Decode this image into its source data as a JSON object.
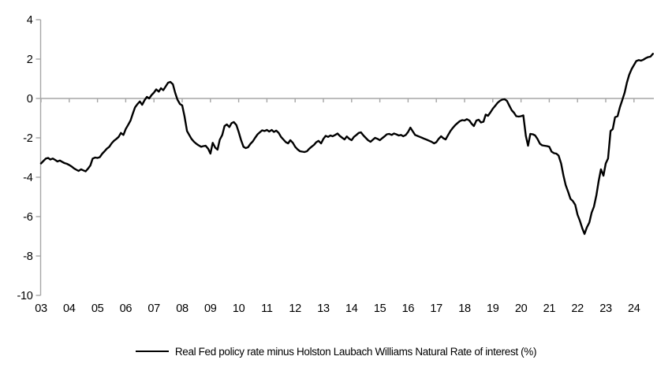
{
  "chart_data": {
    "type": "line",
    "title": "",
    "xlabel": "",
    "ylabel": "",
    "grid": false,
    "legend_position": "bottom",
    "axis_color": "#a6a6a6",
    "background_color": "#ffffff",
    "zero_line": true,
    "y_axis": {
      "ticks": [
        4,
        2,
        0,
        -2,
        -4,
        -6,
        -8,
        -10
      ],
      "tick_labels": [
        "4",
        "2",
        "0",
        "-2",
        "-4",
        "-6",
        "-8",
        "-10"
      ],
      "range": [
        -10,
        4
      ]
    },
    "x_axis": {
      "tick_years": [
        2003,
        2004,
        2005,
        2006,
        2007,
        2008,
        2009,
        2010,
        2011,
        2012,
        2013,
        2014,
        2015,
        2016,
        2017,
        2018,
        2019,
        2020,
        2021,
        2022,
        2023,
        2024
      ],
      "tick_labels": [
        "03",
        "04",
        "05",
        "06",
        "07",
        "08",
        "09",
        "10",
        "11",
        "12",
        "13",
        "14",
        "15",
        "16",
        "17",
        "18",
        "19",
        "20",
        "21",
        "22",
        "23",
        "24"
      ],
      "range": [
        2003.0,
        2024.72
      ]
    },
    "series": [
      {
        "name": "Real Fed policy rate minus Holston Laubach Williams Natural Rate of interest (%)",
        "color": "#000000",
        "points": [
          [
            2003.0,
            -3.3
          ],
          [
            2003.08,
            -3.18
          ],
          [
            2003.17,
            -3.05
          ],
          [
            2003.25,
            -3.02
          ],
          [
            2003.33,
            -3.1
          ],
          [
            2003.42,
            -3.05
          ],
          [
            2003.5,
            -3.12
          ],
          [
            2003.58,
            -3.2
          ],
          [
            2003.67,
            -3.15
          ],
          [
            2003.75,
            -3.22
          ],
          [
            2003.83,
            -3.28
          ],
          [
            2003.92,
            -3.32
          ],
          [
            2004.0,
            -3.38
          ],
          [
            2004.08,
            -3.45
          ],
          [
            2004.17,
            -3.55
          ],
          [
            2004.25,
            -3.62
          ],
          [
            2004.33,
            -3.68
          ],
          [
            2004.42,
            -3.6
          ],
          [
            2004.5,
            -3.65
          ],
          [
            2004.58,
            -3.7
          ],
          [
            2004.67,
            -3.55
          ],
          [
            2004.75,
            -3.4
          ],
          [
            2004.83,
            -3.05
          ],
          [
            2004.92,
            -3.0
          ],
          [
            2005.0,
            -3.02
          ],
          [
            2005.08,
            -2.98
          ],
          [
            2005.17,
            -2.8
          ],
          [
            2005.25,
            -2.68
          ],
          [
            2005.33,
            -2.55
          ],
          [
            2005.42,
            -2.45
          ],
          [
            2005.5,
            -2.28
          ],
          [
            2005.58,
            -2.15
          ],
          [
            2005.67,
            -2.05
          ],
          [
            2005.75,
            -1.95
          ],
          [
            2005.83,
            -1.75
          ],
          [
            2005.92,
            -1.85
          ],
          [
            2006.0,
            -1.55
          ],
          [
            2006.08,
            -1.35
          ],
          [
            2006.17,
            -1.12
          ],
          [
            2006.25,
            -0.78
          ],
          [
            2006.33,
            -0.45
          ],
          [
            2006.42,
            -0.28
          ],
          [
            2006.5,
            -0.15
          ],
          [
            2006.58,
            -0.32
          ],
          [
            2006.67,
            -0.08
          ],
          [
            2006.75,
            0.08
          ],
          [
            2006.83,
            0.0
          ],
          [
            2006.92,
            0.18
          ],
          [
            2007.0,
            0.3
          ],
          [
            2007.08,
            0.46
          ],
          [
            2007.17,
            0.35
          ],
          [
            2007.25,
            0.52
          ],
          [
            2007.33,
            0.42
          ],
          [
            2007.42,
            0.62
          ],
          [
            2007.5,
            0.8
          ],
          [
            2007.58,
            0.84
          ],
          [
            2007.67,
            0.72
          ],
          [
            2007.75,
            0.3
          ],
          [
            2007.83,
            -0.05
          ],
          [
            2007.92,
            -0.28
          ],
          [
            2008.0,
            -0.35
          ],
          [
            2008.08,
            -0.9
          ],
          [
            2008.17,
            -1.65
          ],
          [
            2008.25,
            -1.85
          ],
          [
            2008.33,
            -2.05
          ],
          [
            2008.42,
            -2.2
          ],
          [
            2008.5,
            -2.3
          ],
          [
            2008.58,
            -2.38
          ],
          [
            2008.67,
            -2.45
          ],
          [
            2008.75,
            -2.42
          ],
          [
            2008.83,
            -2.4
          ],
          [
            2008.92,
            -2.55
          ],
          [
            2009.0,
            -2.8
          ],
          [
            2009.08,
            -2.25
          ],
          [
            2009.17,
            -2.5
          ],
          [
            2009.25,
            -2.6
          ],
          [
            2009.33,
            -2.1
          ],
          [
            2009.42,
            -1.85
          ],
          [
            2009.5,
            -1.4
          ],
          [
            2009.58,
            -1.32
          ],
          [
            2009.67,
            -1.45
          ],
          [
            2009.75,
            -1.25
          ],
          [
            2009.83,
            -1.2
          ],
          [
            2009.92,
            -1.35
          ],
          [
            2010.0,
            -1.7
          ],
          [
            2010.08,
            -2.1
          ],
          [
            2010.17,
            -2.45
          ],
          [
            2010.25,
            -2.52
          ],
          [
            2010.33,
            -2.48
          ],
          [
            2010.42,
            -2.3
          ],
          [
            2010.5,
            -2.18
          ],
          [
            2010.58,
            -2.0
          ],
          [
            2010.67,
            -1.82
          ],
          [
            2010.75,
            -1.72
          ],
          [
            2010.83,
            -1.62
          ],
          [
            2010.92,
            -1.65
          ],
          [
            2011.0,
            -1.6
          ],
          [
            2011.08,
            -1.68
          ],
          [
            2011.17,
            -1.6
          ],
          [
            2011.25,
            -1.7
          ],
          [
            2011.33,
            -1.63
          ],
          [
            2011.42,
            -1.75
          ],
          [
            2011.5,
            -1.95
          ],
          [
            2011.58,
            -2.08
          ],
          [
            2011.67,
            -2.22
          ],
          [
            2011.75,
            -2.28
          ],
          [
            2011.83,
            -2.12
          ],
          [
            2011.92,
            -2.25
          ],
          [
            2012.0,
            -2.45
          ],
          [
            2012.08,
            -2.58
          ],
          [
            2012.17,
            -2.68
          ],
          [
            2012.25,
            -2.7
          ],
          [
            2012.33,
            -2.72
          ],
          [
            2012.42,
            -2.68
          ],
          [
            2012.5,
            -2.55
          ],
          [
            2012.58,
            -2.45
          ],
          [
            2012.67,
            -2.35
          ],
          [
            2012.75,
            -2.22
          ],
          [
            2012.83,
            -2.15
          ],
          [
            2012.92,
            -2.28
          ],
          [
            2013.0,
            -2.05
          ],
          [
            2013.08,
            -1.9
          ],
          [
            2013.17,
            -1.95
          ],
          [
            2013.25,
            -1.88
          ],
          [
            2013.33,
            -1.92
          ],
          [
            2013.42,
            -1.85
          ],
          [
            2013.5,
            -1.78
          ],
          [
            2013.58,
            -1.9
          ],
          [
            2013.67,
            -2.0
          ],
          [
            2013.75,
            -2.08
          ],
          [
            2013.83,
            -1.93
          ],
          [
            2013.92,
            -2.05
          ],
          [
            2014.0,
            -2.12
          ],
          [
            2014.08,
            -1.95
          ],
          [
            2014.17,
            -1.85
          ],
          [
            2014.25,
            -1.75
          ],
          [
            2014.33,
            -1.72
          ],
          [
            2014.42,
            -1.88
          ],
          [
            2014.5,
            -2.0
          ],
          [
            2014.58,
            -2.12
          ],
          [
            2014.67,
            -2.2
          ],
          [
            2014.75,
            -2.1
          ],
          [
            2014.83,
            -2.0
          ],
          [
            2014.92,
            -2.05
          ],
          [
            2015.0,
            -2.12
          ],
          [
            2015.08,
            -2.02
          ],
          [
            2015.17,
            -1.92
          ],
          [
            2015.25,
            -1.82
          ],
          [
            2015.33,
            -1.8
          ],
          [
            2015.42,
            -1.85
          ],
          [
            2015.5,
            -1.78
          ],
          [
            2015.58,
            -1.82
          ],
          [
            2015.67,
            -1.88
          ],
          [
            2015.75,
            -1.85
          ],
          [
            2015.83,
            -1.92
          ],
          [
            2015.92,
            -1.85
          ],
          [
            2016.0,
            -1.7
          ],
          [
            2016.08,
            -1.48
          ],
          [
            2016.17,
            -1.68
          ],
          [
            2016.25,
            -1.85
          ],
          [
            2016.33,
            -1.9
          ],
          [
            2016.42,
            -1.95
          ],
          [
            2016.5,
            -2.0
          ],
          [
            2016.58,
            -2.05
          ],
          [
            2016.67,
            -2.1
          ],
          [
            2016.75,
            -2.15
          ],
          [
            2016.83,
            -2.2
          ],
          [
            2016.92,
            -2.28
          ],
          [
            2017.0,
            -2.22
          ],
          [
            2017.08,
            -2.05
          ],
          [
            2017.17,
            -1.92
          ],
          [
            2017.25,
            -2.02
          ],
          [
            2017.33,
            -2.08
          ],
          [
            2017.42,
            -1.85
          ],
          [
            2017.5,
            -1.65
          ],
          [
            2017.58,
            -1.5
          ],
          [
            2017.67,
            -1.35
          ],
          [
            2017.75,
            -1.25
          ],
          [
            2017.83,
            -1.15
          ],
          [
            2017.92,
            -1.1
          ],
          [
            2018.0,
            -1.12
          ],
          [
            2018.08,
            -1.05
          ],
          [
            2018.17,
            -1.12
          ],
          [
            2018.25,
            -1.28
          ],
          [
            2018.33,
            -1.4
          ],
          [
            2018.42,
            -1.12
          ],
          [
            2018.5,
            -1.08
          ],
          [
            2018.58,
            -1.22
          ],
          [
            2018.67,
            -1.18
          ],
          [
            2018.75,
            -0.82
          ],
          [
            2018.83,
            -0.88
          ],
          [
            2018.92,
            -0.7
          ],
          [
            2019.0,
            -0.52
          ],
          [
            2019.08,
            -0.38
          ],
          [
            2019.17,
            -0.22
          ],
          [
            2019.25,
            -0.12
          ],
          [
            2019.33,
            -0.06
          ],
          [
            2019.42,
            -0.04
          ],
          [
            2019.5,
            -0.12
          ],
          [
            2019.58,
            -0.35
          ],
          [
            2019.67,
            -0.6
          ],
          [
            2019.75,
            -0.72
          ],
          [
            2019.83,
            -0.9
          ],
          [
            2019.92,
            -0.92
          ],
          [
            2020.0,
            -0.9
          ],
          [
            2020.08,
            -0.86
          ],
          [
            2020.17,
            -1.9
          ],
          [
            2020.25,
            -2.4
          ],
          [
            2020.33,
            -1.8
          ],
          [
            2020.42,
            -1.82
          ],
          [
            2020.5,
            -1.88
          ],
          [
            2020.58,
            -2.05
          ],
          [
            2020.67,
            -2.3
          ],
          [
            2020.75,
            -2.38
          ],
          [
            2020.83,
            -2.4
          ],
          [
            2020.92,
            -2.42
          ],
          [
            2021.0,
            -2.45
          ],
          [
            2021.08,
            -2.7
          ],
          [
            2021.17,
            -2.78
          ],
          [
            2021.25,
            -2.8
          ],
          [
            2021.33,
            -2.9
          ],
          [
            2021.42,
            -3.3
          ],
          [
            2021.5,
            -3.9
          ],
          [
            2021.58,
            -4.4
          ],
          [
            2021.67,
            -4.75
          ],
          [
            2021.75,
            -5.1
          ],
          [
            2021.83,
            -5.2
          ],
          [
            2021.92,
            -5.4
          ],
          [
            2022.0,
            -5.9
          ],
          [
            2022.08,
            -6.2
          ],
          [
            2022.17,
            -6.6
          ],
          [
            2022.25,
            -6.88
          ],
          [
            2022.33,
            -6.55
          ],
          [
            2022.42,
            -6.3
          ],
          [
            2022.5,
            -5.8
          ],
          [
            2022.58,
            -5.5
          ],
          [
            2022.67,
            -4.9
          ],
          [
            2022.75,
            -4.2
          ],
          [
            2022.83,
            -3.6
          ],
          [
            2022.92,
            -3.92
          ],
          [
            2023.0,
            -3.3
          ],
          [
            2023.08,
            -3.05
          ],
          [
            2023.17,
            -1.65
          ],
          [
            2023.25,
            -1.55
          ],
          [
            2023.33,
            -0.95
          ],
          [
            2023.42,
            -0.9
          ],
          [
            2023.5,
            -0.45
          ],
          [
            2023.58,
            -0.1
          ],
          [
            2023.67,
            0.3
          ],
          [
            2023.75,
            0.8
          ],
          [
            2023.83,
            1.2
          ],
          [
            2023.92,
            1.5
          ],
          [
            2024.0,
            1.7
          ],
          [
            2024.08,
            1.9
          ],
          [
            2024.17,
            1.95
          ],
          [
            2024.25,
            1.92
          ],
          [
            2024.33,
            1.97
          ],
          [
            2024.42,
            2.05
          ],
          [
            2024.5,
            2.1
          ],
          [
            2024.58,
            2.12
          ],
          [
            2024.67,
            2.27
          ]
        ]
      }
    ]
  },
  "legend": {
    "label": "Real Fed policy rate minus Holston Laubach Williams Natural Rate of interest (%)"
  }
}
